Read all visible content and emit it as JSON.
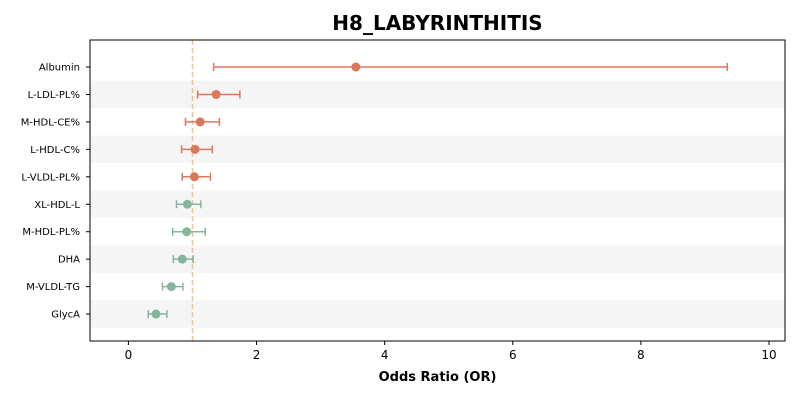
{
  "chart_data": {
    "type": "forest",
    "title": "H8_LABYRINTHITIS",
    "xlabel": "Odds Ratio (OR)",
    "ylabel": "",
    "xlim": [
      -0.6,
      10.25
    ],
    "xticks": [
      0,
      2,
      4,
      6,
      8,
      10
    ],
    "xtick_labels": [
      "0",
      "2",
      "4",
      "6",
      "8",
      "10"
    ],
    "reference_line": 1,
    "colors": {
      "risk": "#d9785c",
      "protective": "#86b59e",
      "reference": "#f2c382",
      "band": "#f5f5f5"
    },
    "series": [
      {
        "label": "Albumin",
        "or": 3.55,
        "ci_low": 1.33,
        "ci_high": 9.35,
        "group": "risk"
      },
      {
        "label": "L-LDL-PL%",
        "or": 1.37,
        "ci_low": 1.08,
        "ci_high": 1.74,
        "group": "risk"
      },
      {
        "label": "M-HDL-CE%",
        "or": 1.12,
        "ci_low": 0.89,
        "ci_high": 1.42,
        "group": "risk"
      },
      {
        "label": "L-HDL-C%",
        "or": 1.04,
        "ci_low": 0.83,
        "ci_high": 1.31,
        "group": "risk"
      },
      {
        "label": "L-VLDL-PL%",
        "or": 1.03,
        "ci_low": 0.84,
        "ci_high": 1.28,
        "group": "risk"
      },
      {
        "label": "XL-HDL-L",
        "or": 0.92,
        "ci_low": 0.75,
        "ci_high": 1.13,
        "group": "protective"
      },
      {
        "label": "M-HDL-PL%",
        "or": 0.91,
        "ci_low": 0.69,
        "ci_high": 1.2,
        "group": "protective"
      },
      {
        "label": "DHA",
        "or": 0.84,
        "ci_low": 0.7,
        "ci_high": 1.01,
        "group": "protective"
      },
      {
        "label": "M-VLDL-TG",
        "or": 0.67,
        "ci_low": 0.53,
        "ci_high": 0.85,
        "group": "protective"
      },
      {
        "label": "GlycA",
        "or": 0.43,
        "ci_low": 0.31,
        "ci_high": 0.6,
        "group": "protective"
      }
    ]
  }
}
